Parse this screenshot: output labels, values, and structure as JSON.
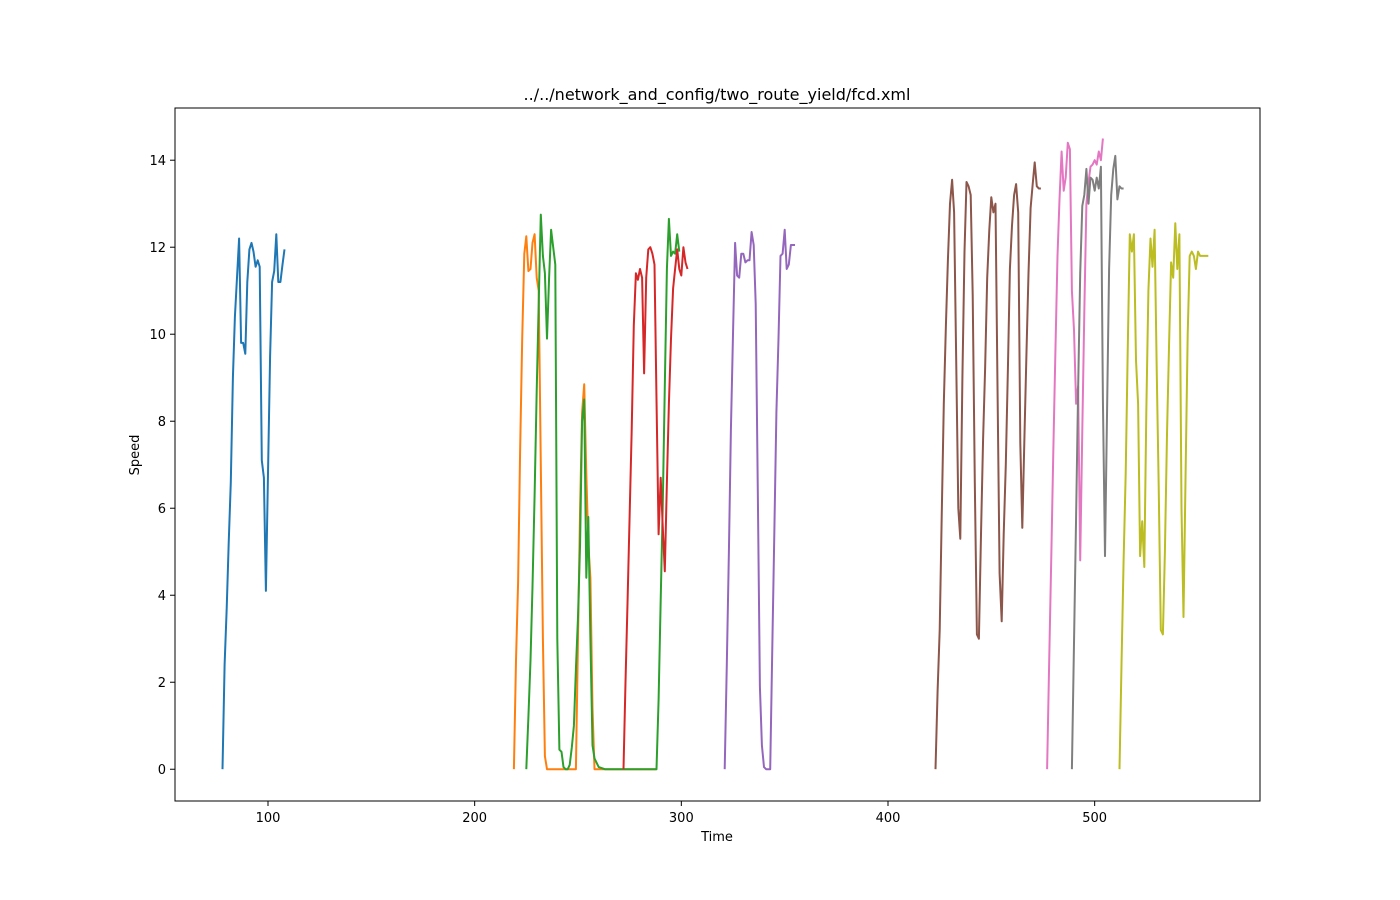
{
  "chart_data": {
    "type": "line",
    "title": "../../network_and_config/two_route_yield/fcd.xml",
    "xlabel": "Time",
    "ylabel": "Speed",
    "xlim": [
      55,
      580
    ],
    "ylim": [
      -0.73,
      15.2
    ],
    "xticks": [
      100,
      200,
      300,
      400,
      500
    ],
    "yticks": [
      0,
      2,
      4,
      6,
      8,
      10,
      12,
      14
    ],
    "grid": false,
    "legend": "none",
    "series": [
      {
        "color": "#1f77b4",
        "x": [
          78,
          79,
          80,
          81,
          82,
          83,
          84,
          85,
          86,
          87,
          88,
          89,
          90,
          91,
          92,
          93,
          94,
          95,
          96,
          97,
          98,
          99,
          100,
          101,
          102,
          103,
          104,
          105,
          106,
          107,
          108
        ],
        "y": [
          0.0,
          2.4,
          3.7,
          5.2,
          6.6,
          9.0,
          10.4,
          11.3,
          12.2,
          9.8,
          9.8,
          9.55,
          11.2,
          11.95,
          12.1,
          11.9,
          11.55,
          11.7,
          11.55,
          7.1,
          6.7,
          4.1,
          6.8,
          9.5,
          11.2,
          11.45,
          12.3,
          11.2,
          11.2,
          11.6,
          11.95
        ]
      },
      {
        "color": "#ff7f0e",
        "x": [
          219,
          220,
          221,
          222,
          223,
          224,
          225,
          226,
          227,
          228,
          229,
          230,
          231,
          232,
          233,
          234,
          235,
          236,
          237,
          238,
          240,
          243,
          246,
          249,
          251,
          252,
          253,
          254,
          255,
          256,
          257,
          258,
          260,
          262,
          270,
          280,
          287,
          288
        ],
        "y": [
          0.0,
          2.5,
          4.3,
          7.3,
          9.9,
          11.85,
          12.25,
          11.45,
          11.5,
          12.1,
          12.3,
          11.3,
          11.0,
          7.0,
          3.0,
          0.3,
          0.0,
          0.0,
          0.0,
          0.0,
          0.0,
          0.0,
          0.0,
          0.0,
          6.0,
          8.2,
          8.85,
          6.8,
          5.2,
          4.4,
          1.4,
          0.0,
          0.0,
          0.0,
          0.0,
          0.0,
          0.0,
          0.0
        ]
      },
      {
        "color": "#2ca02c",
        "x": [
          225,
          226,
          227,
          228,
          229,
          230,
          231,
          232,
          233,
          234,
          235,
          236,
          237,
          238,
          239,
          240,
          241,
          242,
          243,
          244,
          245,
          246,
          247,
          248,
          249,
          250,
          251,
          252,
          253,
          254,
          255,
          256,
          257,
          258,
          260,
          263,
          266,
          270,
          275,
          280,
          285,
          288,
          289,
          290,
          291,
          292,
          293,
          294,
          295,
          296,
          297,
          298,
          299
        ],
        "y": [
          0.0,
          1.2,
          2.5,
          4.2,
          6.3,
          8.7,
          10.7,
          12.75,
          11.8,
          11.4,
          9.9,
          11.3,
          12.4,
          12.0,
          11.6,
          3.0,
          0.45,
          0.4,
          0.05,
          0.0,
          0.0,
          0.1,
          0.5,
          1.0,
          2.3,
          3.5,
          5.2,
          8.0,
          8.5,
          4.4,
          5.8,
          3.0,
          0.55,
          0.25,
          0.05,
          0.0,
          0.0,
          0.0,
          0.0,
          0.0,
          0.0,
          0.0,
          1.6,
          3.9,
          6.0,
          8.8,
          11.5,
          12.65,
          11.8,
          11.9,
          11.85,
          12.3,
          11.9
        ]
      },
      {
        "color": "#d62728",
        "x": [
          272,
          273,
          274,
          275,
          276,
          277,
          278,
          279,
          280,
          281,
          282,
          283,
          284,
          285,
          286,
          287,
          288,
          289,
          290,
          291,
          292,
          293,
          294,
          295,
          296,
          297,
          298,
          299,
          300,
          301,
          302,
          303
        ],
        "y": [
          0.0,
          2.0,
          3.9,
          5.9,
          7.8,
          10.2,
          11.4,
          11.25,
          11.5,
          11.3,
          9.1,
          11.3,
          11.95,
          12.0,
          11.85,
          11.6,
          8.5,
          5.4,
          6.7,
          5.6,
          4.55,
          6.6,
          8.4,
          9.9,
          11.05,
          11.5,
          11.95,
          11.5,
          11.35,
          12.0,
          11.65,
          11.5
        ]
      },
      {
        "color": "#9467bd",
        "x": [
          321,
          322,
          323,
          324,
          325,
          326,
          327,
          328,
          329,
          330,
          331,
          332,
          333,
          334,
          335,
          336,
          337,
          338,
          339,
          340,
          341,
          342,
          343,
          344,
          345,
          346,
          347,
          348,
          349,
          350,
          351,
          352,
          353,
          354,
          355
        ],
        "y": [
          0.0,
          2.4,
          5.0,
          7.8,
          10.0,
          12.1,
          11.35,
          11.3,
          11.85,
          11.85,
          11.65,
          11.7,
          11.7,
          12.35,
          12.05,
          10.7,
          6.4,
          1.9,
          0.55,
          0.05,
          0.0,
          0.0,
          0.0,
          2.8,
          5.4,
          8.2,
          9.9,
          11.8,
          11.85,
          12.4,
          11.5,
          11.6,
          12.05,
          12.05,
          12.05
        ]
      },
      {
        "color": "#8c564b",
        "x": [
          423,
          424,
          425,
          426,
          427,
          428,
          429,
          430,
          431,
          432,
          433,
          434,
          435,
          436,
          437,
          438,
          439,
          440,
          441,
          442,
          443,
          444,
          445,
          446,
          447,
          448,
          449,
          450,
          451,
          452,
          453,
          454,
          455,
          456,
          457,
          458,
          459,
          460,
          461,
          462,
          463,
          464,
          465,
          466,
          467,
          468,
          469,
          470,
          471,
          472,
          473,
          474
        ],
        "y": [
          0.0,
          1.8,
          3.2,
          5.8,
          8.4,
          10.2,
          11.7,
          13.0,
          13.55,
          12.8,
          9.4,
          6.0,
          5.3,
          9.0,
          11.9,
          13.5,
          13.4,
          13.2,
          10.9,
          6.6,
          3.1,
          3.0,
          5.4,
          7.6,
          9.2,
          11.3,
          12.4,
          13.15,
          12.8,
          13.0,
          8.8,
          4.5,
          3.4,
          5.4,
          7.0,
          9.2,
          11.5,
          12.5,
          13.2,
          13.45,
          12.8,
          7.5,
          5.55,
          7.6,
          9.6,
          11.4,
          12.9,
          13.45,
          13.95,
          13.4,
          13.35,
          13.35
        ]
      },
      {
        "color": "#e377c2",
        "x": [
          477,
          478,
          479,
          480,
          481,
          482,
          483,
          484,
          485,
          486,
          487,
          488,
          489,
          490,
          491,
          492,
          493,
          494,
          495,
          496,
          497,
          498,
          499,
          500,
          501,
          502,
          503,
          504
        ],
        "y": [
          0.0,
          2.5,
          4.9,
          7.3,
          9.6,
          11.8,
          13.1,
          14.2,
          13.3,
          13.6,
          14.4,
          14.25,
          11.0,
          10.1,
          8.4,
          8.8,
          4.8,
          7.8,
          10.5,
          13.0,
          13.5,
          13.85,
          13.9,
          14.0,
          13.9,
          14.2,
          14.0,
          14.5
        ]
      },
      {
        "color": "#7f7f7f",
        "x": [
          489,
          490,
          491,
          492,
          493,
          494,
          495,
          496,
          497,
          498,
          499,
          500,
          501,
          502,
          503,
          504,
          505,
          506,
          507,
          508,
          509,
          510,
          511,
          512,
          513,
          514
        ],
        "y": [
          0.0,
          2.9,
          5.8,
          8.7,
          11.4,
          12.95,
          13.2,
          13.8,
          13.0,
          13.6,
          13.55,
          13.3,
          13.6,
          13.35,
          13.85,
          8.5,
          4.9,
          8.3,
          11.5,
          13.2,
          13.8,
          14.1,
          13.1,
          13.4,
          13.35,
          13.35
        ]
      },
      {
        "color": "#bcbd22",
        "x": [
          512,
          513,
          514,
          515,
          516,
          517,
          518,
          519,
          520,
          521,
          522,
          523,
          524,
          525,
          526,
          527,
          528,
          529,
          530,
          531,
          532,
          533,
          534,
          535,
          536,
          537,
          538,
          539,
          540,
          541,
          542,
          543,
          544,
          545,
          546,
          547,
          548,
          549,
          550,
          551,
          552,
          553,
          554,
          555
        ],
        "y": [
          0.0,
          2.4,
          4.8,
          6.8,
          9.6,
          12.3,
          11.9,
          12.3,
          9.4,
          8.4,
          4.9,
          5.7,
          4.65,
          8.2,
          11.0,
          12.2,
          11.55,
          12.4,
          9.2,
          6.5,
          3.2,
          3.1,
          5.0,
          7.7,
          9.8,
          11.65,
          11.3,
          12.55,
          11.5,
          12.3,
          6.0,
          3.5,
          6.8,
          10.0,
          11.8,
          11.9,
          11.8,
          11.5,
          11.9,
          11.8,
          11.8,
          11.8,
          11.8,
          11.8
        ]
      }
    ]
  }
}
